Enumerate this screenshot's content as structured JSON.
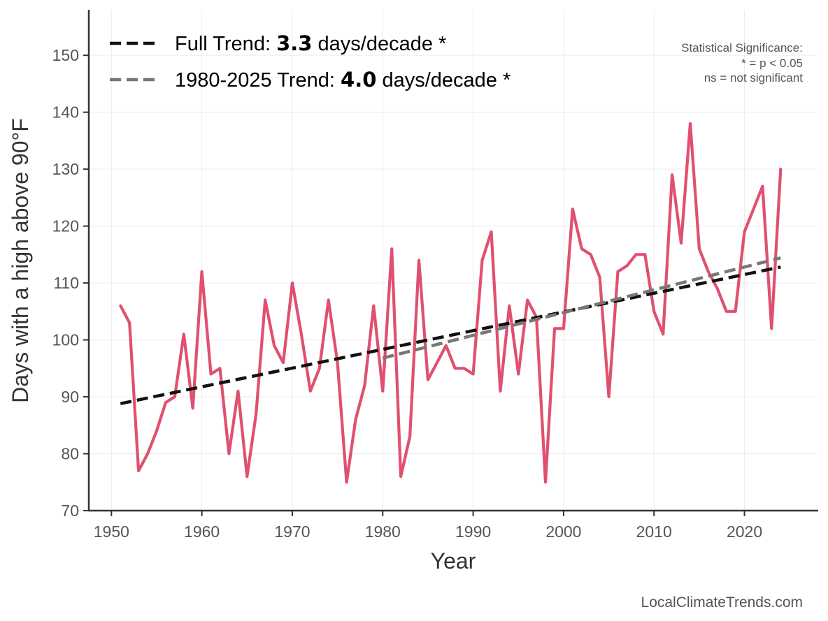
{
  "chart_data": {
    "type": "line",
    "xlabel": "Year",
    "ylabel": "Days with a high above 90°F",
    "xlim": [
      1947.5,
      2028
    ],
    "ylim": [
      70,
      158
    ],
    "xticks": [
      1950,
      1960,
      1970,
      1980,
      1990,
      2000,
      2010,
      2020
    ],
    "yticks": [
      70,
      80,
      90,
      100,
      110,
      120,
      130,
      140,
      150
    ],
    "grid": true,
    "legend_position": "top-left",
    "series": [
      {
        "color": "#e0506f",
        "x": [
          1951,
          1952,
          1953,
          1954,
          1955,
          1956,
          1957,
          1958,
          1959,
          1960,
          1961,
          1962,
          1963,
          1964,
          1965,
          1966,
          1967,
          1968,
          1969,
          1970,
          1971,
          1972,
          1973,
          1974,
          1975,
          1976,
          1977,
          1978,
          1979,
          1980,
          1981,
          1982,
          1983,
          1984,
          1985,
          1986,
          1987,
          1988,
          1989,
          1990,
          1991,
          1992,
          1993,
          1994,
          1995,
          1996,
          1997,
          1998,
          1999,
          2000,
          2001,
          2002,
          2003,
          2004,
          2005,
          2006,
          2007,
          2008,
          2009,
          2010,
          2011,
          2012,
          2013,
          2014,
          2015,
          2016,
          2017,
          2018,
          2019,
          2020,
          2021,
          2022,
          2023,
          2024
        ],
        "y": [
          106,
          103,
          77,
          80,
          84,
          89,
          90,
          101,
          88,
          112,
          94,
          95,
          80,
          91,
          76,
          87,
          107,
          99,
          96,
          110,
          101,
          91,
          95,
          107,
          96,
          75,
          86,
          92,
          106,
          91,
          116,
          76,
          83,
          114,
          93,
          96,
          99,
          95,
          95,
          94,
          114,
          119,
          91,
          106,
          94,
          107,
          104,
          75,
          102,
          102,
          123,
          116,
          115,
          111,
          90,
          112,
          113,
          115,
          115,
          105,
          101,
          129,
          117,
          138,
          116,
          112,
          109,
          105,
          105,
          119,
          123,
          127,
          102,
          130
        ]
      }
    ],
    "trends": [
      {
        "name": "Full Trend",
        "value": "3.3",
        "unit": "days/decade *",
        "color": "#111111",
        "x": [
          1951,
          2024
        ],
        "y": [
          88.8,
          112.8
        ]
      },
      {
        "name": "1980-2025 Trend",
        "value": "4.0",
        "unit": "days/decade *",
        "color": "#777777",
        "x": [
          1980,
          2024
        ],
        "y": [
          96.8,
          114.4
        ]
      }
    ],
    "significance_note": [
      "Statistical Significance:",
      "* = p < 0.05",
      "ns = not significant"
    ],
    "source": "LocalClimateTrends.com"
  }
}
